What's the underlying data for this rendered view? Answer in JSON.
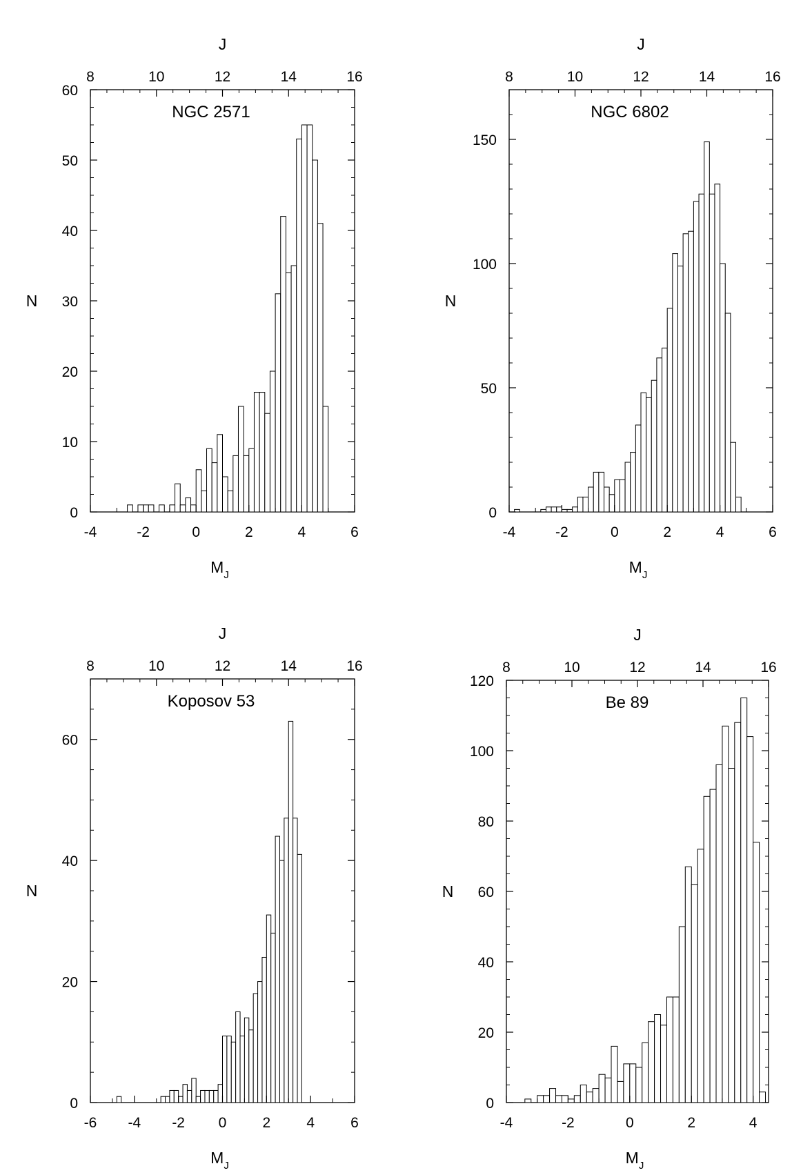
{
  "chart_data": [
    {
      "type": "bar",
      "title": "NGC 2571",
      "xlabel": "M",
      "xlabel_sub": "J",
      "ylabel": "N",
      "top_xlabel": "J",
      "xlim": [
        -4,
        6
      ],
      "ylim": [
        0,
        60
      ],
      "top_xlim": [
        8,
        16
      ],
      "x_ticks": [
        -4,
        -2,
        0,
        2,
        4,
        6
      ],
      "y_ticks": [
        0,
        10,
        20,
        30,
        40,
        50,
        60
      ],
      "top_ticks": [
        8,
        10,
        12,
        14,
        16
      ],
      "bin_width": 0.2,
      "bin_start": -2.6,
      "values": [
        1,
        0,
        1,
        1,
        1,
        0,
        1,
        0,
        1,
        4,
        1,
        2,
        1,
        6,
        3,
        9,
        7,
        11,
        5,
        3,
        8,
        15,
        8,
        9,
        17,
        17,
        14,
        20,
        31,
        42,
        34,
        35,
        53,
        55,
        55,
        50,
        41,
        15
      ]
    },
    {
      "type": "bar",
      "title": "NGC 6802",
      "xlabel": "M",
      "xlabel_sub": "J",
      "ylabel": "N",
      "top_xlabel": "J",
      "xlim": [
        -4,
        6
      ],
      "ylim": [
        0,
        170
      ],
      "top_xlim": [
        8,
        16
      ],
      "x_ticks": [
        -4,
        -2,
        0,
        2,
        4,
        6
      ],
      "y_ticks": [
        0,
        50,
        100,
        150
      ],
      "top_ticks": [
        8,
        10,
        12,
        14,
        16
      ],
      "bin_width": 0.2,
      "bin_start": -3.8,
      "values": [
        1,
        0,
        0,
        0,
        0,
        1,
        2,
        2,
        2,
        1,
        1,
        2,
        6,
        6,
        10,
        16,
        16,
        10,
        7,
        13,
        13,
        20,
        24,
        35,
        48,
        46,
        53,
        62,
        66,
        82,
        104,
        99,
        112,
        113,
        125,
        128,
        149,
        128,
        132,
        100,
        80,
        28,
        6
      ]
    },
    {
      "type": "bar",
      "title": "Koposov 53",
      "xlabel": "M",
      "xlabel_sub": "J",
      "ylabel": "N",
      "top_xlabel": "J",
      "xlim": [
        -6,
        6
      ],
      "ylim": [
        0,
        70
      ],
      "top_xlim": [
        8,
        16
      ],
      "x_ticks": [
        -6,
        -4,
        -2,
        0,
        2,
        4,
        6
      ],
      "y_ticks": [
        0,
        20,
        40,
        60
      ],
      "top_ticks": [
        8,
        10,
        12,
        14,
        16
      ],
      "bin_width": 0.2,
      "bin_start": -4.8,
      "values": [
        1,
        0,
        0,
        0,
        0,
        0,
        0,
        0,
        0,
        0,
        1,
        1,
        2,
        2,
        1,
        3,
        2,
        4,
        1,
        2,
        2,
        2,
        2,
        3,
        11,
        11,
        10,
        15,
        11,
        14,
        12,
        18,
        20,
        24,
        31,
        28,
        44,
        40,
        47,
        63,
        47,
        41
      ]
    },
    {
      "type": "bar",
      "title": "Be 89",
      "xlabel": "M",
      "xlabel_sub": "J",
      "ylabel": "N",
      "top_xlabel": "J",
      "xlim": [
        -4,
        4.5
      ],
      "ylim": [
        0,
        120
      ],
      "top_xlim": [
        8,
        16
      ],
      "x_ticks": [
        -4,
        -2,
        0,
        2,
        4
      ],
      "y_ticks": [
        0,
        20,
        40,
        60,
        80,
        100,
        120
      ],
      "top_ticks": [
        8,
        10,
        12,
        14,
        16
      ],
      "bin_width": 0.2,
      "bin_start": -3.4,
      "values": [
        1,
        0,
        2,
        2,
        4,
        2,
        2,
        1,
        2,
        5,
        3,
        4,
        8,
        7,
        16,
        6,
        11,
        11,
        10,
        17,
        23,
        25,
        22,
        30,
        30,
        50,
        67,
        62,
        72,
        87,
        89,
        96,
        107,
        95,
        108,
        115,
        104,
        74,
        3
      ]
    }
  ]
}
